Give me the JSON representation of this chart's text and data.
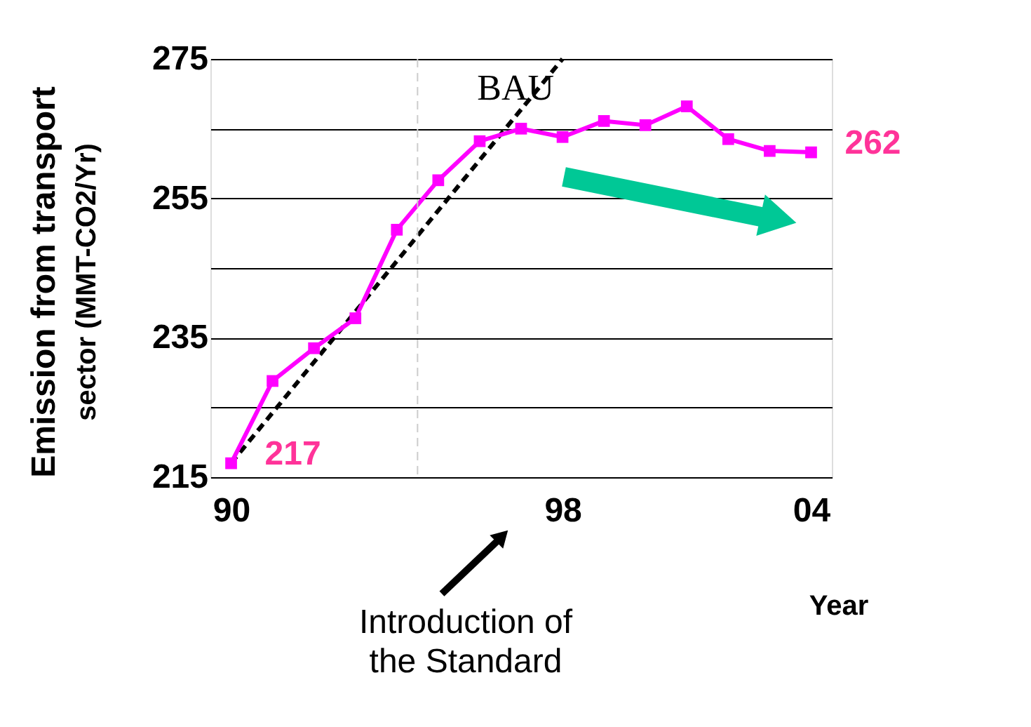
{
  "chart_data": {
    "type": "line",
    "x": [
      1990,
      1991,
      1992,
      1993,
      1994,
      1995,
      1996,
      1997,
      1998,
      1999,
      2000,
      2001,
      2002,
      2003,
      2004
    ],
    "series": [
      {
        "name": "BAU",
        "type": "line",
        "color": "#000000",
        "line_style": "dashed",
        "marker": "none",
        "x": [
          1990,
          1998
        ],
        "values": [
          217,
          275
        ]
      },
      {
        "color": "#ff00ff",
        "marker": "square",
        "line_style": "solid",
        "values": [
          217,
          228.8,
          233.5,
          237.8,
          250.5,
          257.6,
          263.2,
          265.0,
          263.8,
          266.1,
          265.5,
          268.2,
          263.5,
          261.8,
          261.6
        ],
        "value_labels": [
          "217",
          null,
          null,
          null,
          null,
          null,
          null,
          null,
          null,
          null,
          null,
          null,
          null,
          null,
          "262"
        ]
      }
    ],
    "xlim": [
      1989.5,
      2004.5
    ],
    "xticks": [
      {
        "value": 1990,
        "label": "90"
      },
      {
        "value": 1998,
        "label": "98"
      },
      {
        "value": 2004,
        "label": "04"
      }
    ],
    "ylim": [
      215,
      275
    ],
    "yticks": [
      215,
      {
        "value": 225,
        "label": null
      },
      235,
      {
        "value": 245,
        "label": null
      },
      255,
      {
        "value": 265,
        "label": null
      },
      275
    ],
    "xlabel": "Year",
    "ylabel": "Emission from transport\nsector (MMT-CO2/Yr)",
    "grid": "y",
    "legend": false,
    "ref_lines": [
      {
        "axis": "x",
        "value": 1994.5,
        "color": "#cccccc",
        "line_style": "dashed"
      }
    ],
    "annotations": [
      "Introduction of\nthe Standard"
    ]
  }
}
